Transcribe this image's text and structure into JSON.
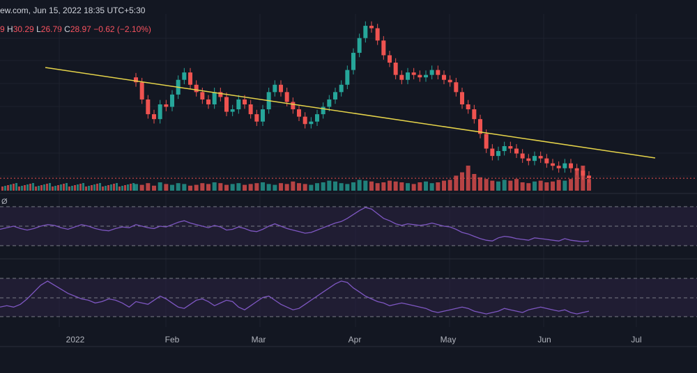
{
  "header": {
    "source_date": "ew.com, Jun 15, 2022 18:35 UTC+5:30"
  },
  "ohlc": {
    "open_fragment": "9",
    "high_label": "H",
    "high": "30.29",
    "low_label": "L",
    "low": "26.79",
    "close_label": "C",
    "close": "28.97",
    "change": "−0.62 (−2.10%)"
  },
  "indicator_label": "Ø",
  "colors": {
    "background": "#131722",
    "up": "#26a69a",
    "down": "#ef5350",
    "trendline": "#e6d44a",
    "oscillator": "#7e57c2",
    "band": "#2a2240"
  },
  "chart_data": {
    "type": "candlestick",
    "x_axis_labels": [
      "2022",
      "Feb",
      "Mar",
      "Apr",
      "May",
      "Jun",
      "Jul"
    ],
    "last_price_marker": 28.97,
    "close_series": [
      48.5,
      45.0,
      42.0,
      41.0,
      44.0,
      43.5,
      46.0,
      49.0,
      50.5,
      48.0,
      46.5,
      45.0,
      44.0,
      46.5,
      45.5,
      42.5,
      43.0,
      45.0,
      44.0,
      42.0,
      40.5,
      43.0,
      46.5,
      48.0,
      46.5,
      44.5,
      43.0,
      41.5,
      40.0,
      40.5,
      42.0,
      43.5,
      45.0,
      46.5,
      48.0,
      51.0,
      54.5,
      57.5,
      60.0,
      59.5,
      57.0,
      54.0,
      52.5,
      50.0,
      49.0,
      50.5,
      50.0,
      49.5,
      50.0,
      51.0,
      50.0,
      49.0,
      48.5,
      46.5,
      44.0,
      43.0,
      41.0,
      38.0,
      35.0,
      33.5,
      34.5,
      35.5,
      35.0,
      34.0,
      33.0,
      32.5,
      33.5,
      33.0,
      32.0,
      31.5,
      31.0,
      32.0,
      31.0,
      30.5,
      29.5,
      28.97
    ],
    "rsi_series": [
      52,
      50,
      48,
      47,
      50,
      49,
      52,
      55,
      57,
      54,
      52,
      50,
      48,
      51,
      49,
      45,
      46,
      49,
      47,
      44,
      43,
      46,
      50,
      53,
      50,
      47,
      45,
      43,
      41,
      42,
      45,
      48,
      51,
      54,
      56,
      60,
      65,
      70,
      74,
      72,
      66,
      60,
      57,
      53,
      51,
      53,
      52,
      51,
      52,
      54,
      52,
      50,
      49,
      46,
      42,
      40,
      37,
      34,
      32,
      31,
      35,
      37,
      36,
      34,
      33,
      32,
      35,
      34,
      33,
      32,
      31,
      34,
      32,
      31,
      30,
      31
    ],
    "osc_series": [
      48,
      47,
      46,
      49,
      52,
      50,
      47,
      44,
      43,
      46,
      49,
      50,
      48,
      45,
      47,
      49,
      48,
      44,
      42,
      45,
      48,
      51,
      52,
      49,
      46,
      44,
      42,
      43,
      46,
      49,
      52,
      55,
      58,
      61,
      63,
      62,
      58,
      55,
      52,
      50,
      48,
      47,
      45,
      46,
      47,
      46,
      45,
      44,
      43,
      41,
      40,
      41,
      42,
      43,
      44,
      43,
      41,
      40,
      39,
      40,
      41,
      43,
      42,
      41,
      40,
      42,
      43,
      44,
      43,
      42,
      41,
      42,
      40,
      39,
      40,
      41
    ],
    "volume_series": [
      8,
      7,
      9,
      6,
      10,
      8,
      7,
      9,
      8,
      6,
      7,
      9,
      8,
      10,
      9,
      7,
      8,
      9,
      7,
      8,
      9,
      10,
      8,
      7,
      9,
      8,
      11,
      9,
      8,
      7,
      9,
      10,
      12,
      11,
      9,
      8,
      10,
      13,
      12,
      11,
      9,
      10,
      12,
      11,
      10,
      9,
      8,
      10,
      11,
      9,
      10,
      12,
      13,
      18,
      22,
      30,
      20,
      16,
      14,
      12,
      11,
      13,
      12,
      14,
      10,
      9,
      11,
      12,
      10,
      11,
      13,
      12,
      14,
      24,
      30,
      14
    ]
  }
}
